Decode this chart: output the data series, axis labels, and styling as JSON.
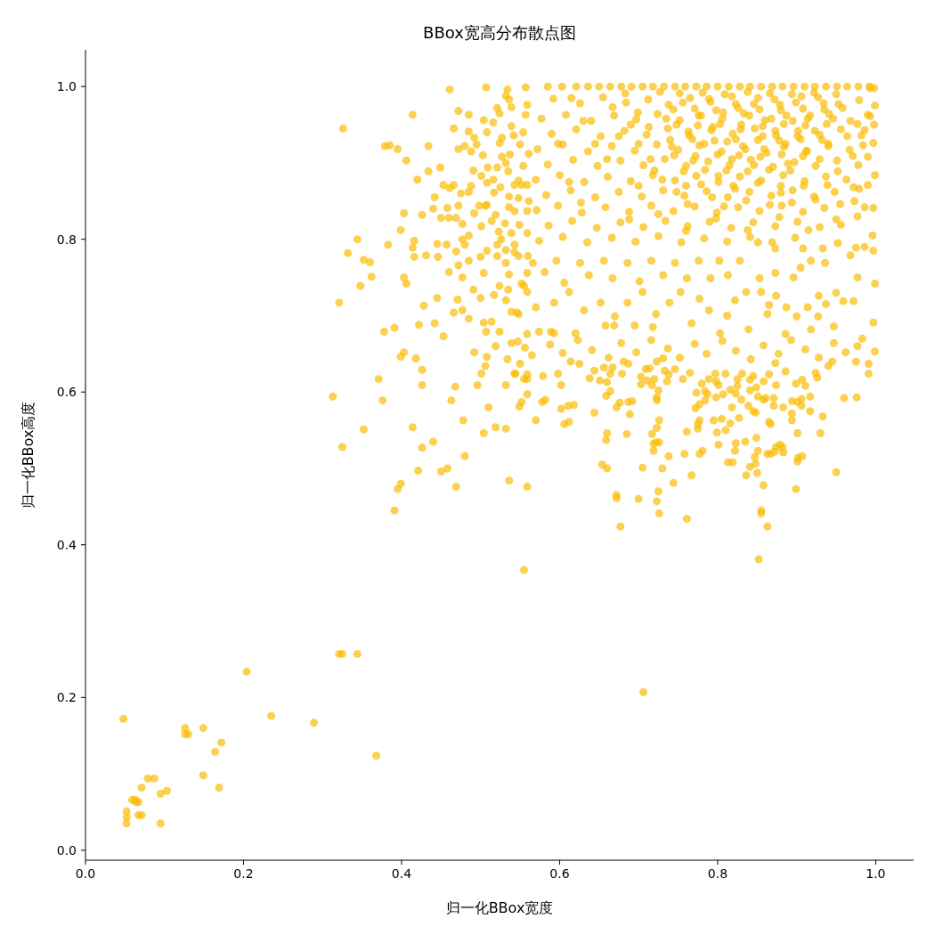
{
  "chart_data": {
    "type": "scatter",
    "title": "BBox宽高分布散点图",
    "xlabel": "归一化BBox宽度",
    "ylabel": "归一化BBox高度",
    "x": [
      0.048,
      0.052,
      0.052,
      0.052,
      0.059,
      0.063,
      0.064,
      0.067,
      0.067,
      0.071,
      0.071,
      0.079,
      0.087,
      0.095,
      0.095,
      0.103,
      0.126,
      0.126,
      0.13,
      0.149,
      0.149,
      0.164,
      0.172,
      0.169,
      0.204,
      0.235,
      0.289,
      0.321,
      0.325,
      0.344,
      0.368,
      0.555,
      0.706,
      0.326,
      0.313,
      0.321,
      0.325,
      0.344,
      0.332,
      0.352,
      0.36,
      0.348,
      0.362,
      0.352,
      0.371,
      0.376,
      0.391,
      0.395,
      0.399,
      0.379,
      0.385,
      0.395,
      0.414,
      0.406,
      0.42,
      0.383,
      0.403,
      0.399,
      0.403,
      0.406,
      0.378,
      0.391,
      0.403,
      0.399,
      0.418,
      0.426,
      0.426,
      0.414,
      0.426,
      0.421,
      0.44,
      0.45,
      0.458,
      0.469,
      0.48,
      0.463,
      0.468,
      0.478,
      0.504,
      0.51,
      0.519,
      0.532,
      0.536,
      0.559,
      0.549,
      0.559,
      0.461,
      0.507,
      0.472,
      0.466,
      0.434,
      0.434,
      0.449,
      0.442,
      0.44,
      0.426,
      0.416,
      0.414,
      0.416,
      0.431,
      0.445,
      0.46,
      0.428,
      0.445,
      0.422,
      0.442,
      0.453,
      0.492,
      0.508,
      0.506,
      0.501,
      0.496,
      0.532,
      0.543,
      0.55,
      0.534,
      0.519,
      0.539,
      0.547,
      0.556,
      0.507,
      0.524,
      0.491,
      0.471,
      0.477,
      0.466,
      0.485,
      0.504,
      0.514,
      0.5,
      0.517,
      0.532,
      0.539,
      0.546,
      0.524,
      0.535,
      0.552,
      0.559,
      0.555,
      0.536,
      0.504,
      0.477,
      0.472,
      0.485,
      0.469,
      0.446,
      0.48,
      0.457,
      0.477,
      0.485,
      0.5,
      0.508,
      0.521,
      0.532,
      0.543,
      0.56,
      0.45,
      0.46,
      0.469,
      0.477,
      0.458,
      0.472,
      0.461,
      0.466,
      0.453,
      0.475,
      0.485,
      0.488,
      0.498,
      0.492,
      0.506,
      0.501,
      0.491,
      0.472,
      0.48,
      0.488,
      0.495,
      0.503,
      0.485,
      0.492,
      0.508,
      0.504,
      0.485,
      0.521,
      0.516,
      0.524,
      0.532,
      0.536,
      0.534,
      0.557,
      0.539,
      0.539,
      0.557,
      0.559,
      0.527,
      0.542,
      0.554,
      0.524,
      0.55,
      0.527,
      0.537,
      0.509,
      0.521,
      0.532,
      0.501,
      0.516,
      0.508,
      0.525,
      0.535,
      0.548,
      0.554,
      0.561,
      0.543,
      0.552,
      0.559,
      0.517,
      0.536,
      0.548,
      0.561,
      0.508,
      0.519,
      0.536,
      0.543,
      0.559,
      0.514,
      0.531,
      0.549,
      0.523,
      0.539,
      0.559,
      0.521,
      0.543,
      0.532,
      0.526,
      0.852,
      0.855,
      0.855,
      0.863,
      0.899,
      0.95,
      0.858,
      0.761,
      0.726,
      0.723,
      0.725,
      0.677,
      0.672,
      0.672,
      0.7,
      0.744,
      0.767,
      0.73,
      0.705,
      0.654,
      0.66,
      0.738,
      0.758,
      0.777,
      0.781,
      0.719,
      0.719,
      0.722,
      0.726,
      0.717,
      0.723,
      0.726,
      0.659,
      0.66,
      0.685,
      0.689,
      0.644,
      0.606,
      0.612,
      0.602,
      0.611,
      0.618,
      0.57,
      0.552,
      0.578,
      0.582,
      0.602,
      0.598,
      0.638,
      0.659,
      0.664,
      0.672,
      0.676,
      0.687,
      0.692,
      0.723,
      0.723,
      0.761,
      0.777,
      0.775,
      0.775,
      0.799,
      0.801,
      0.81,
      0.813,
      0.819,
      0.823,
      0.822,
      0.836,
      0.841,
      0.848,
      0.847,
      0.851,
      0.849,
      0.835,
      0.85,
      0.863,
      0.867,
      0.872,
      0.874,
      0.879,
      0.882,
      0.883,
      0.901,
      0.901,
      0.902,
      0.907,
      0.93,
      0.933,
      0.917,
      0.894,
      0.894,
      0.883,
      0.871,
      0.871,
      0.865,
      0.867,
      0.858,
      0.861,
      0.851,
      0.845,
      0.848,
      0.839,
      0.894,
      0.901,
      0.906,
      0.906,
      0.917,
      0.96,
      0.976,
      0.999,
      0.991,
      0.991,
      0.975,
      0.977,
      0.945,
      0.94,
      0.924,
      0.926,
      0.911,
      0.907,
      0.899,
      0.874,
      0.865,
      0.886,
      0.858,
      0.849,
      0.841,
      0.845,
      0.841,
      0.825,
      0.825,
      0.831,
      0.81,
      0.797,
      0.798,
      0.801,
      0.789,
      0.78,
      0.773,
      0.784,
      0.787,
      0.798,
      0.807,
      0.816,
      0.823,
      0.83,
      0.818,
      0.784,
      0.772,
      0.777,
      0.795,
      0.805,
      0.827,
      0.816,
      0.765,
      0.756,
      0.736,
      0.725,
      0.72,
      0.711,
      0.703,
      0.703,
      0.717,
      0.733,
      0.738,
      0.746,
      0.709,
      0.714,
      0.723,
      0.731,
      0.687,
      0.681,
      0.679,
      0.664,
      0.656,
      0.667,
      0.644,
      0.651,
      0.66,
      0.625,
      0.614,
      0.579,
      0.559,
      0.559,
      0.555,
      0.544,
      0.559,
      0.574,
      0.589,
      0.593,
      0.62,
      0.658,
      0.669,
      0.695,
      0.718,
      0.767,
      0.803,
      0.839,
      0.886,
      0.918,
      0.947,
      0.997,
      0.999,
      0.997,
      0.996,
      0.997,
      0.999,
      0.997,
      0.998,
      0.999,
      0.998,
      0.975,
      0.986,
      0.968,
      0.977,
      0.959,
      0.972,
      0.95,
      0.937,
      0.928,
      0.927,
      0.914,
      0.9,
      0.887,
      0.874,
      0.865,
      0.863,
      0.853,
      0.855,
      0.873,
      0.896,
      0.905,
      0.918,
      0.936,
      0.952,
      0.956,
      0.977,
      0.986,
      0.979,
      0.973,
      0.99,
      0.99,
      0.986,
      0.99,
      0.993,
      0.836,
      0.822,
      0.812,
      0.789,
      0.777,
      0.753,
      0.739,
      0.722,
      0.705,
      0.686,
      0.67,
      0.652,
      0.631,
      0.612,
      0.593,
      0.57,
      0.559,
      0.548,
      0.581,
      0.606,
      0.637,
      0.667,
      0.701,
      0.731,
      0.761,
      0.791,
      0.813,
      0.828,
      0.802,
      0.776,
      0.746,
      0.716,
      0.686,
      0.656,
      0.626,
      0.596,
      0.566,
      0.548,
      0.873,
      0.908,
      0.933,
      0.851,
      0.585,
      0.603,
      0.621,
      0.636,
      0.65,
      0.664,
      0.678,
      0.691,
      0.705,
      0.718,
      0.732,
      0.746,
      0.759,
      0.773,
      0.786,
      0.8,
      0.814,
      0.828,
      0.841,
      0.855,
      0.869,
      0.882,
      0.896,
      0.91,
      0.923,
      0.937,
      0.951,
      0.964,
      0.978,
      0.992,
      0.592,
      0.626,
      0.655,
      0.684,
      0.712,
      0.738,
      0.765,
      0.791,
      0.818,
      0.846,
      0.872,
      0.899,
      0.927,
      0.953,
      0.979,
      0.577,
      0.608,
      0.64,
      0.669,
      0.697,
      0.724,
      0.752,
      0.779,
      0.806,
      0.833,
      0.86,
      0.887,
      0.914,
      0.941,
      0.968,
      0.993,
      0.59,
      0.621,
      0.652,
      0.682,
      0.71,
      0.737,
      0.764,
      0.792,
      0.819,
      0.847,
      0.874,
      0.902,
      0.929,
      0.956,
      0.982,
      0.572,
      0.604,
      0.636,
      0.666,
      0.695,
      0.723,
      0.75,
      0.777,
      0.805,
      0.832,
      0.859,
      0.886,
      0.913,
      0.94,
      0.967,
      0.585,
      0.617,
      0.648,
      0.677,
      0.706,
      0.733,
      0.76,
      0.788,
      0.815,
      0.842,
      0.87,
      0.897,
      0.924,
      0.951,
      0.978,
      0.57,
      0.6,
      0.631,
      0.661,
      0.69,
      0.718,
      0.746,
      0.773,
      0.801,
      0.828,
      0.855,
      0.883,
      0.91,
      0.937,
      0.963,
      0.583,
      0.614,
      0.645,
      0.675,
      0.704,
      0.731,
      0.758,
      0.786,
      0.813,
      0.84,
      0.868,
      0.895,
      0.922,
      0.948,
      0.571,
      0.598,
      0.628,
      0.658,
      0.688,
      0.716,
      0.744,
      0.771,
      0.799,
      0.826,
      0.853,
      0.881,
      0.908,
      0.935,
      0.586,
      0.616,
      0.647,
      0.677,
      0.706,
      0.734,
      0.762,
      0.79,
      0.817,
      0.845,
      0.873,
      0.901,
      0.929,
      0.574,
      0.604,
      0.635,
      0.666,
      0.696,
      0.725,
      0.754,
      0.783,
      0.812,
      0.841,
      0.869,
      0.898,
      0.752,
      0.781,
      0.809,
      0.838,
      0.866,
      0.894,
      0.922,
      0.95,
      0.744,
      0.771,
      0.798,
      0.826,
      0.853,
      0.88,
      0.908,
      0.935,
      0.748,
      0.775,
      0.803,
      0.83,
      0.857,
      0.884,
      0.911,
      0.938,
      0.74,
      0.768,
      0.796,
      0.823,
      0.851,
      0.878,
      0.905,
      0.932,
      0.745,
      0.772,
      0.8,
      0.827,
      0.854,
      0.881,
      0.908,
      0.72,
      0.757,
      0.784,
      0.811,
      0.838,
      0.865,
      0.892,
      0.69,
      0.7,
      0.76,
      0.82,
      0.88,
      0.565,
      0.588,
      0.604,
      0.623,
      0.641,
      0.662,
      0.678,
      0.697,
      0.716,
      0.737,
      0.752,
      0.771,
      0.786,
      0.806,
      0.823,
      0.842,
      0.858,
      0.877,
      0.893,
      0.911,
      0.928,
      0.947,
      0.962,
      0.983,
      0.873,
      0.667,
      0.683,
      0.699,
      0.713,
      0.727,
      0.735,
      0.742,
      0.756,
      0.763,
      0.769,
      0.776,
      0.783,
      0.789,
      0.794,
      0.801,
      0.807,
      0.812,
      0.818,
      0.823,
      0.829,
      0.835,
      0.84,
      0.846,
      0.851,
      0.857,
      0.862,
      0.868,
      0.873,
      0.879,
      0.884,
      0.889,
      0.895,
      0.901,
      0.906,
      0.912,
      0.917,
      0.923,
      0.929,
      0.934,
      0.94,
      0.946,
      0.952,
      0.958,
      0.964,
      0.971,
      0.977,
      0.984,
      0.7,
      0.715,
      0.73,
      0.748,
      0.762,
      0.779,
      0.793,
      0.808,
      0.822,
      0.836,
      0.851,
      0.866,
      0.88,
      0.894,
      0.909,
      0.924,
      0.939,
      0.955,
      0.675,
      0.66,
      0.645,
      0.63,
      0.615,
      0.598,
      0.612,
      0.627,
      0.688,
      0.725,
      0.76,
      0.798,
      0.838,
      0.878,
      0.915,
      0.95,
      0.972
    ],
    "values": [
      0.172,
      0.051,
      0.043,
      0.035,
      0.066,
      0.066,
      0.063,
      0.063,
      0.046,
      0.046,
      0.082,
      0.094,
      0.094,
      0.074,
      0.035,
      0.078,
      0.16,
      0.152,
      0.152,
      0.16,
      0.098,
      0.129,
      0.141,
      0.082,
      0.234,
      0.176,
      0.167,
      0.257,
      0.257,
      0.257,
      0.124,
      0.367,
      0.207,
      0.945,
      0.594,
      0.717,
      0.528,
      0.8,
      0.782,
      0.773,
      0.77,
      0.739,
      0.751,
      0.551,
      0.617,
      0.589,
      0.445,
      0.473,
      0.48,
      0.922,
      0.923,
      0.918,
      0.963,
      0.903,
      0.878,
      0.793,
      0.834,
      0.812,
      0.75,
      0.742,
      0.679,
      0.684,
      0.652,
      0.646,
      0.644,
      0.629,
      0.609,
      0.554,
      0.527,
      0.497,
      0.535,
      0.496,
      0.5,
      0.476,
      0.516,
      0.589,
      0.607,
      0.563,
      0.546,
      0.58,
      0.554,
      0.552,
      0.484,
      0.476,
      0.581,
      0.597,
      0.996,
      0.999,
      0.968,
      0.945,
      0.922,
      0.889,
      0.894,
      0.855,
      0.84,
      0.832,
      0.798,
      0.789,
      0.777,
      0.779,
      0.794,
      0.757,
      0.713,
      0.723,
      0.688,
      0.69,
      0.673,
      0.652,
      0.646,
      0.634,
      0.624,
      0.609,
      0.609,
      0.624,
      0.637,
      0.643,
      0.66,
      0.664,
      0.666,
      0.658,
      0.679,
      0.679,
      0.734,
      0.721,
      0.707,
      0.704,
      0.696,
      0.691,
      0.692,
      0.723,
      0.727,
      0.72,
      0.705,
      0.704,
      0.739,
      0.734,
      0.742,
      0.756,
      0.739,
      0.754,
      0.756,
      0.75,
      0.766,
      0.772,
      0.784,
      0.777,
      0.793,
      0.793,
      0.8,
      0.805,
      0.777,
      0.785,
      0.778,
      0.769,
      0.783,
      0.778,
      0.828,
      0.828,
      0.828,
      0.82,
      0.841,
      0.844,
      0.867,
      0.871,
      0.871,
      0.86,
      0.862,
      0.87,
      0.844,
      0.834,
      0.844,
      0.817,
      0.89,
      0.918,
      0.922,
      0.915,
      0.924,
      0.91,
      0.941,
      0.933,
      0.94,
      0.956,
      0.963,
      0.972,
      0.953,
      0.965,
      0.988,
      0.983,
      0.996,
      0.999,
      0.973,
      0.948,
      0.963,
      0.976,
      0.933,
      0.936,
      0.94,
      0.926,
      0.924,
      0.908,
      0.911,
      0.894,
      0.894,
      0.9,
      0.883,
      0.878,
      0.874,
      0.868,
      0.889,
      0.877,
      0.896,
      0.912,
      0.871,
      0.871,
      0.871,
      0.861,
      0.856,
      0.854,
      0.85,
      0.845,
      0.832,
      0.842,
      0.837,
      0.837,
      0.824,
      0.821,
      0.819,
      0.81,
      0.808,
      0.808,
      0.793,
      0.793,
      0.786,
      0.8,
      0.381,
      0.445,
      0.441,
      0.424,
      0.473,
      0.495,
      0.478,
      0.434,
      0.441,
      0.457,
      0.47,
      0.424,
      0.465,
      0.461,
      0.46,
      0.481,
      0.491,
      0.5,
      0.501,
      0.505,
      0.5,
      0.516,
      0.519,
      0.519,
      0.523,
      0.523,
      0.532,
      0.534,
      0.534,
      0.545,
      0.553,
      0.563,
      0.537,
      0.546,
      0.545,
      0.571,
      0.573,
      0.558,
      0.561,
      0.578,
      0.582,
      0.583,
      0.563,
      0.587,
      0.587,
      0.59,
      0.609,
      0.624,
      0.618,
      0.595,
      0.601,
      0.58,
      0.586,
      0.587,
      0.588,
      0.593,
      0.589,
      0.548,
      0.563,
      0.558,
      0.552,
      0.547,
      0.531,
      0.55,
      0.508,
      0.508,
      0.533,
      0.523,
      0.491,
      0.502,
      0.506,
      0.515,
      0.523,
      0.54,
      0.535,
      0.494,
      0.519,
      0.519,
      0.522,
      0.528,
      0.531,
      0.528,
      0.521,
      0.546,
      0.509,
      0.514,
      0.516,
      0.546,
      0.568,
      0.575,
      0.563,
      0.572,
      0.58,
      0.582,
      0.592,
      0.561,
      0.558,
      0.59,
      0.592,
      0.594,
      0.575,
      0.573,
      0.582,
      0.588,
      0.587,
      0.591,
      0.582,
      0.594,
      0.592,
      0.593,
      0.653,
      0.637,
      0.624,
      0.64,
      0.66,
      0.64,
      0.634,
      0.625,
      0.619,
      0.608,
      0.616,
      0.611,
      0.609,
      0.623,
      0.627,
      0.614,
      0.606,
      0.602,
      0.621,
      0.616,
      0.617,
      0.608,
      0.624,
      0.624,
      0.624,
      0.614,
      0.609,
      0.617,
      0.611,
      0.599,
      0.601,
      0.597,
      0.593,
      0.597,
      0.603,
      0.598,
      0.59,
      0.58,
      0.589,
      0.579,
      0.584,
      0.563,
      0.565,
      0.566,
      0.559,
      0.625,
      0.617,
      0.614,
      0.602,
      0.617,
      0.615,
      0.62,
      0.61,
      0.609,
      0.628,
      0.623,
      0.63,
      0.63,
      0.631,
      0.64,
      0.644,
      0.637,
      0.64,
      0.624,
      0.624,
      0.632,
      0.632,
      0.628,
      0.615,
      0.613,
      0.637,
      0.64,
      0.621,
      0.623,
      0.617,
      0.617,
      0.624,
      0.676,
      0.679,
      0.679,
      0.677,
      0.677,
      0.687,
      0.687,
      0.687,
      0.685,
      0.69,
      0.677,
      0.682,
      0.676,
      0.682,
      0.686,
      0.691,
      0.742,
      0.785,
      0.805,
      0.841,
      0.884,
      0.926,
      0.95,
      0.975,
      0.998,
      0.789,
      0.79,
      0.779,
      0.75,
      0.719,
      0.719,
      0.73,
      0.715,
      0.726,
      0.699,
      0.711,
      0.699,
      0.711,
      0.726,
      0.714,
      0.702,
      0.749,
      0.731,
      0.756,
      0.75,
      0.763,
      0.772,
      0.769,
      0.795,
      0.819,
      0.83,
      0.842,
      0.866,
      0.85,
      0.871,
      0.908,
      0.943,
      0.963,
      0.998,
      0.731,
      0.72,
      0.7,
      0.707,
      0.722,
      0.731,
      0.717,
      0.702,
      0.731,
      0.717,
      0.699,
      0.717,
      0.707,
      0.731,
      0.717,
      0.711,
      0.731,
      0.702,
      0.757,
      0.743,
      0.753,
      0.749,
      0.745,
      0.753,
      0.749,
      0.749,
      0.753,
      0.772,
      0.772,
      0.772,
      0.769,
      0.772,
      0.769,
      0.772,
      0.769,
      0.772,
      0.769,
      0.778,
      0.788,
      0.788,
      0.788,
      0.796,
      1.0,
      1.0,
      1.0,
      1.0,
      1.0,
      1.0,
      1.0,
      1.0,
      1.0,
      1.0,
      1.0,
      1.0,
      1.0,
      1.0,
      1.0,
      1.0,
      1.0,
      1.0,
      1.0,
      1.0,
      1.0,
      1.0,
      1.0,
      1.0,
      1.0,
      1.0,
      1.0,
      1.0,
      1.0,
      1.0,
      0.984,
      0.978,
      0.986,
      0.979,
      0.983,
      0.976,
      0.985,
      0.98,
      0.987,
      0.977,
      0.983,
      0.979,
      0.986,
      0.977,
      0.982,
      0.958,
      0.963,
      0.955,
      0.962,
      0.957,
      0.964,
      0.956,
      0.962,
      0.958,
      0.965,
      0.956,
      0.962,
      0.958,
      0.964,
      0.955,
      0.961,
      0.938,
      0.944,
      0.935,
      0.942,
      0.937,
      0.945,
      0.936,
      0.943,
      0.938,
      0.945,
      0.936,
      0.942,
      0.937,
      0.944,
      0.936,
      0.918,
      0.924,
      0.915,
      0.922,
      0.916,
      0.924,
      0.917,
      0.923,
      0.915,
      0.922,
      0.918,
      0.925,
      0.916,
      0.922,
      0.917,
      0.898,
      0.904,
      0.896,
      0.903,
      0.897,
      0.905,
      0.896,
      0.902,
      0.897,
      0.904,
      0.895,
      0.901,
      0.896,
      0.903,
      0.897,
      0.878,
      0.884,
      0.875,
      0.882,
      0.876,
      0.884,
      0.877,
      0.883,
      0.875,
      0.882,
      0.877,
      0.884,
      0.876,
      0.882,
      0.878,
      0.858,
      0.864,
      0.855,
      0.862,
      0.856,
      0.864,
      0.857,
      0.863,
      0.855,
      0.862,
      0.857,
      0.864,
      0.856,
      0.862,
      0.838,
      0.844,
      0.835,
      0.842,
      0.836,
      0.844,
      0.837,
      0.843,
      0.835,
      0.842,
      0.837,
      0.844,
      0.836,
      0.841,
      0.818,
      0.824,
      0.815,
      0.822,
      0.816,
      0.824,
      0.817,
      0.823,
      0.815,
      0.822,
      0.817,
      0.823,
      0.816,
      0.798,
      0.803,
      0.796,
      0.802,
      0.797,
      0.804,
      0.796,
      0.801,
      0.797,
      0.803,
      0.796,
      0.802,
      0.991,
      0.992,
      0.99,
      0.993,
      0.991,
      0.99,
      0.992,
      0.99,
      0.97,
      0.971,
      0.969,
      0.972,
      0.97,
      0.969,
      0.971,
      0.97,
      0.95,
      0.949,
      0.951,
      0.95,
      0.948,
      0.951,
      0.949,
      0.951,
      0.93,
      0.931,
      0.929,
      0.931,
      0.93,
      0.929,
      0.931,
      0.93,
      0.91,
      0.909,
      0.911,
      0.91,
      0.908,
      0.911,
      0.909,
      0.89,
      0.889,
      0.891,
      0.89,
      0.889,
      0.891,
      0.89,
      0.95,
      0.87,
      0.87,
      0.87,
      0.87,
      0.648,
      0.662,
      0.651,
      0.668,
      0.655,
      0.645,
      0.664,
      0.652,
      0.668,
      0.657,
      0.645,
      0.663,
      0.65,
      0.667,
      0.654,
      0.643,
      0.661,
      0.65,
      0.668,
      0.656,
      0.645,
      0.664,
      0.652,
      0.67,
      0.638,
      0.973,
      0.991,
      0.966,
      0.947,
      0.993,
      0.958,
      0.921,
      0.979,
      0.941,
      0.903,
      0.962,
      0.925,
      0.984,
      0.947,
      0.883,
      0.966,
      0.928,
      0.905,
      0.977,
      0.944,
      0.918,
      0.962,
      0.897,
      0.985,
      0.935,
      0.913,
      0.958,
      0.942,
      0.976,
      0.921,
      0.899,
      0.955,
      0.935,
      0.987,
      0.915,
      0.962,
      0.942,
      0.905,
      0.978,
      0.925,
      0.958,
      0.889,
      0.972,
      0.935,
      0.909,
      0.951,
      0.923,
      0.925,
      0.905,
      0.878,
      0.862,
      0.846,
      0.872,
      0.855,
      0.843,
      0.866,
      0.851,
      0.874,
      0.845,
      0.861,
      0.848,
      0.87,
      0.852,
      0.871,
      0.846,
      0.935,
      0.905,
      0.925,
      0.955,
      0.985,
      0.925,
      0.875,
      0.848,
      0.826,
      0.833,
      0.811,
      0.827,
      0.812,
      0.829,
      0.812,
      0.826,
      0.868
    ],
    "color": "#fbbc05",
    "marker": "circle",
    "xlim": [
      0,
      1.048
    ],
    "ylim": [
      -0.013,
      1.048
    ],
    "xticks": [
      {
        "value": 0,
        "label": "0.0"
      },
      0.2,
      0.4,
      0.6,
      0.8,
      {
        "value": 1,
        "label": "1.0"
      }
    ],
    "yticks": [
      {
        "value": 0,
        "label": "0.0"
      },
      0.2,
      0.4,
      0.6,
      0.8,
      {
        "value": 1,
        "label": "1.0"
      }
    ]
  }
}
